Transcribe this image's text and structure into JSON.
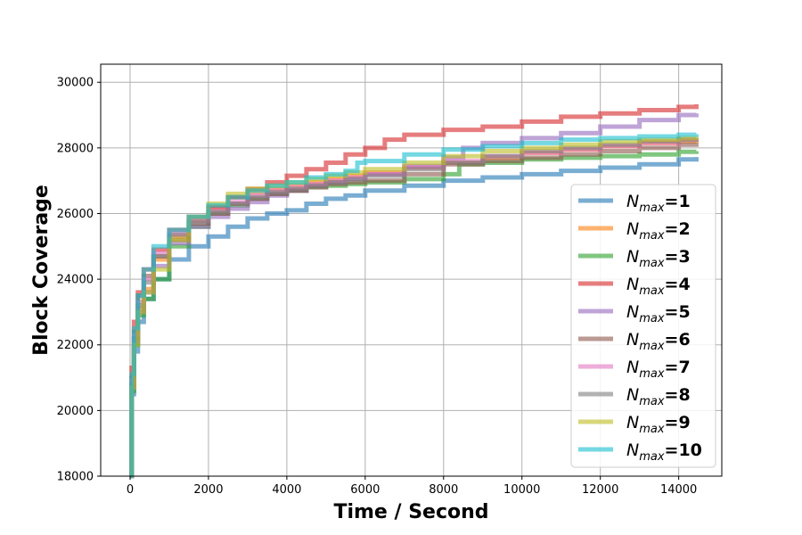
{
  "chart_data": {
    "type": "line",
    "xlabel": "Time / Second",
    "ylabel": "Block Coverage",
    "xlim": [
      -750,
      15100
    ],
    "ylim": [
      18000,
      30550
    ],
    "xticks": [
      0,
      2000,
      4000,
      6000,
      8000,
      10000,
      12000,
      14000
    ],
    "yticks": [
      18000,
      20000,
      22000,
      24000,
      26000,
      28000,
      30000
    ],
    "grid": true,
    "legend_position": "lower-right",
    "series": [
      {
        "name": "N_max=1",
        "legend_main": "N",
        "legend_sub": "max",
        "legend_value": "=1",
        "color": "#1f77b4",
        "x": [
          0,
          40,
          100,
          200,
          350,
          600,
          1000,
          1500,
          2000,
          2500,
          3000,
          3500,
          4000,
          4500,
          5000,
          5500,
          6000,
          7000,
          8000,
          9000,
          10000,
          11000,
          12000,
          13000,
          14000,
          14450
        ],
        "y": [
          18000,
          20500,
          21800,
          22700,
          23400,
          24000,
          24600,
          25000,
          25300,
          25600,
          25850,
          26000,
          26100,
          26300,
          26450,
          26550,
          26700,
          26850,
          27000,
          27100,
          27200,
          27300,
          27400,
          27500,
          27650,
          27720
        ]
      },
      {
        "name": "N_max=2",
        "legend_main": "N",
        "legend_sub": "max",
        "legend_value": "=2",
        "color": "#ff7f0e",
        "x": [
          0,
          40,
          100,
          200,
          350,
          600,
          1000,
          1500,
          2000,
          2500,
          3000,
          3500,
          4000,
          4500,
          5000,
          5500,
          6000,
          7000,
          8000,
          9000,
          10000,
          11000,
          12000,
          13000,
          14000,
          14450
        ],
        "y": [
          18000,
          20800,
          22200,
          23100,
          23700,
          24600,
          25300,
          25800,
          26150,
          26500,
          26650,
          26750,
          26850,
          26950,
          27050,
          27150,
          27250,
          27400,
          27550,
          27700,
          27850,
          27950,
          28050,
          28150,
          28200,
          28250
        ]
      },
      {
        "name": "N_max=3",
        "legend_main": "N",
        "legend_sub": "max",
        "legend_value": "=3",
        "color": "#2ca02c",
        "x": [
          0,
          40,
          100,
          200,
          350,
          600,
          1000,
          1500,
          2000,
          2500,
          3000,
          3500,
          4000,
          4500,
          5000,
          5500,
          6000,
          7000,
          8000,
          8400,
          9000,
          10000,
          11000,
          12000,
          13000,
          14000,
          14450
        ],
        "y": [
          18000,
          20600,
          22000,
          22900,
          23400,
          24000,
          25000,
          25600,
          26000,
          26250,
          26450,
          26600,
          26700,
          26800,
          26850,
          26900,
          26950,
          27050,
          27200,
          27500,
          27550,
          27650,
          27700,
          27750,
          27800,
          27880,
          27900
        ]
      },
      {
        "name": "N_max=4",
        "legend_main": "N",
        "legend_sub": "max",
        "legend_value": "=4",
        "color": "#d62728",
        "x": [
          0,
          40,
          100,
          200,
          350,
          600,
          1000,
          1500,
          2000,
          2500,
          3000,
          3500,
          4000,
          4500,
          5000,
          5500,
          6000,
          6500,
          7000,
          8000,
          9000,
          10000,
          11000,
          12000,
          13000,
          14000,
          14450
        ],
        "y": [
          18000,
          21300,
          22700,
          23600,
          24300,
          24900,
          25500,
          25900,
          26200,
          26500,
          26750,
          26950,
          27150,
          27350,
          27550,
          27800,
          28000,
          28250,
          28400,
          28550,
          28650,
          28800,
          28950,
          29050,
          29150,
          29250,
          29330
        ]
      },
      {
        "name": "N_max=5",
        "legend_main": "N",
        "legend_sub": "max",
        "legend_value": "=5",
        "color": "#9467bd",
        "x": [
          0,
          40,
          100,
          200,
          350,
          600,
          1000,
          1500,
          2000,
          2500,
          3000,
          3500,
          4000,
          4500,
          5000,
          5500,
          6000,
          7000,
          8000,
          8500,
          9000,
          10000,
          11000,
          12000,
          13000,
          14000,
          14450
        ],
        "y": [
          18000,
          20700,
          22100,
          23000,
          23600,
          24400,
          25100,
          25600,
          25900,
          26150,
          26350,
          26550,
          26700,
          26850,
          26950,
          27050,
          27200,
          27450,
          27700,
          28000,
          28150,
          28300,
          28450,
          28650,
          28850,
          29000,
          29050
        ]
      },
      {
        "name": "N_max=6",
        "legend_main": "N",
        "legend_sub": "max",
        "legend_value": "=6",
        "color": "#8c564b",
        "x": [
          0,
          40,
          100,
          200,
          350,
          600,
          1000,
          1500,
          2000,
          2500,
          3000,
          3500,
          4000,
          4500,
          5000,
          5500,
          6000,
          7000,
          8000,
          9000,
          10000,
          11000,
          12000,
          13000,
          14000,
          14450
        ],
        "y": [
          18000,
          21000,
          22400,
          23500,
          24100,
          24700,
          25200,
          25700,
          26000,
          26300,
          26450,
          26600,
          26700,
          26800,
          26900,
          26950,
          27000,
          27200,
          27500,
          27600,
          27700,
          27800,
          27900,
          28000,
          28100,
          28150
        ]
      },
      {
        "name": "N_max=7",
        "legend_main": "N",
        "legend_sub": "max",
        "legend_value": "=7",
        "color": "#e377c2",
        "x": [
          0,
          40,
          100,
          200,
          350,
          600,
          1000,
          1500,
          2000,
          2500,
          3000,
          3500,
          4000,
          4500,
          5000,
          5500,
          6000,
          7000,
          8000,
          9000,
          10000,
          11000,
          12000,
          13000,
          14000,
          14450
        ],
        "y": [
          18000,
          20900,
          22300,
          23300,
          24000,
          24800,
          25400,
          25800,
          26100,
          26350,
          26550,
          26700,
          26800,
          26900,
          27000,
          27100,
          27200,
          27400,
          27600,
          27750,
          27850,
          27950,
          28050,
          28150,
          28250,
          28300
        ]
      },
      {
        "name": "N_max=8",
        "legend_main": "N",
        "legend_sub": "max",
        "legend_value": "=8",
        "color": "#7f7f7f",
        "x": [
          0,
          40,
          100,
          200,
          350,
          600,
          1000,
          1500,
          2000,
          2500,
          3000,
          3500,
          4000,
          4500,
          5000,
          5500,
          6000,
          7000,
          8000,
          9000,
          10000,
          11000,
          12000,
          13000,
          14000,
          14450
        ],
        "y": [
          18000,
          20800,
          22200,
          23200,
          23900,
          24700,
          25350,
          25750,
          26050,
          26300,
          26500,
          26650,
          26750,
          26850,
          26950,
          27050,
          27150,
          27350,
          27550,
          27750,
          27900,
          28000,
          28100,
          28200,
          28250,
          28300
        ]
      },
      {
        "name": "N_max=9",
        "legend_main": "N",
        "legend_sub": "max",
        "legend_value": "=9",
        "color": "#bcbd22",
        "x": [
          0,
          40,
          100,
          200,
          350,
          600,
          1000,
          1500,
          2000,
          2500,
          3000,
          3500,
          4000,
          4500,
          5000,
          5500,
          6000,
          7000,
          8000,
          9000,
          10000,
          11000,
          12000,
          13000,
          14000,
          14450
        ],
        "y": [
          18000,
          20700,
          22000,
          23000,
          23600,
          24300,
          25200,
          25900,
          26300,
          26600,
          26750,
          26850,
          26950,
          27050,
          27150,
          27250,
          27350,
          27550,
          27750,
          27900,
          28000,
          28100,
          28200,
          28250,
          28300,
          28350
        ]
      },
      {
        "name": "N_max=10",
        "legend_main": "N",
        "legend_sub": "max",
        "legend_value": "=10",
        "color": "#17becf",
        "x": [
          0,
          40,
          100,
          200,
          350,
          600,
          1000,
          1500,
          2000,
          2500,
          3000,
          3500,
          4000,
          4500,
          5000,
          5500,
          5800,
          6000,
          7000,
          8000,
          9000,
          10000,
          11000,
          12000,
          13000,
          14000,
          14450
        ],
        "y": [
          18000,
          21100,
          22500,
          23500,
          24300,
          25000,
          25500,
          25900,
          26250,
          26500,
          26700,
          26850,
          26950,
          27100,
          27200,
          27300,
          27550,
          27600,
          27800,
          27950,
          28050,
          28150,
          28250,
          28300,
          28350,
          28400,
          28420
        ]
      }
    ]
  }
}
